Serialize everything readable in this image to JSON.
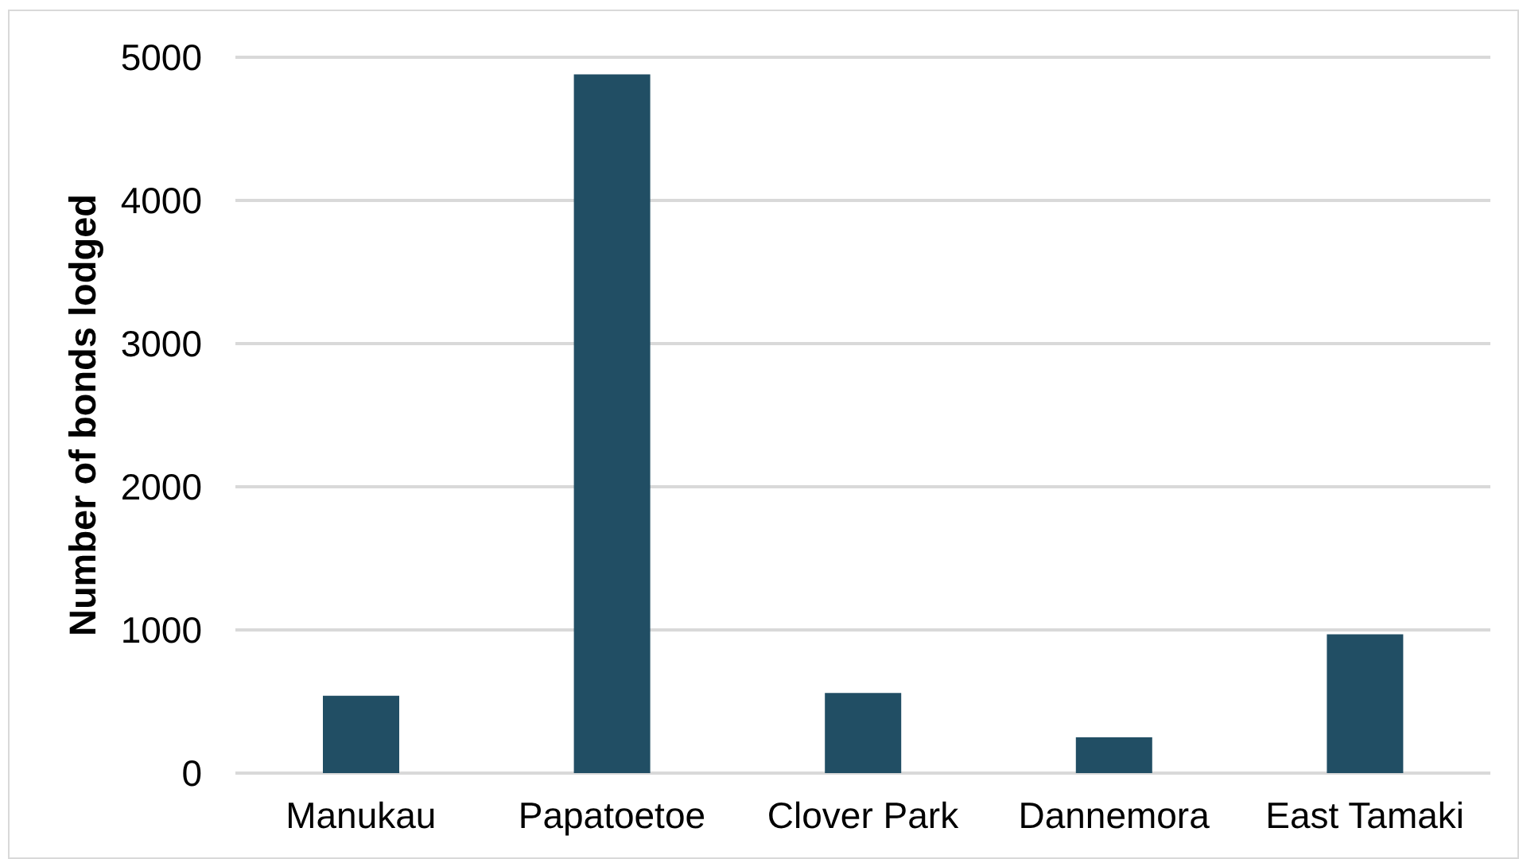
{
  "chart_data": {
    "type": "bar",
    "ylabel": "Number of bonds lodged",
    "categories": [
      "Manukau",
      "Papatoetoe",
      "Clover Park",
      "Dannemora",
      "East Tamaki"
    ],
    "values": [
      540,
      4880,
      560,
      250,
      970
    ],
    "color": "#214e64",
    "ylim": [
      0,
      5000
    ],
    "yticks": [
      0,
      1000,
      2000,
      3000,
      4000,
      5000
    ],
    "grid": "y"
  }
}
